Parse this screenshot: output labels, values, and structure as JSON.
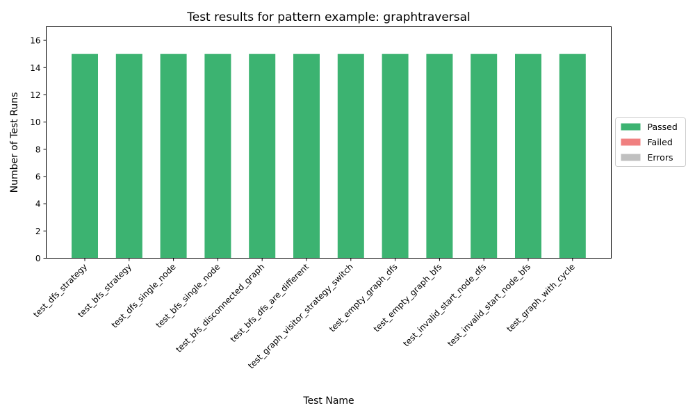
{
  "chart_data": {
    "type": "bar",
    "stacked": true,
    "title": "Test results for pattern example: graphtraversal",
    "xlabel": "Test Name",
    "ylabel": "Number of Test Runs",
    "ylim": [
      0,
      17
    ],
    "yticks": [
      0,
      2,
      4,
      6,
      8,
      10,
      12,
      14,
      16
    ],
    "grid": false,
    "legend_position": "center-right",
    "categories": [
      "test_dfs_strategy",
      "test_bfs_strategy",
      "test_dfs_single_node",
      "test_bfs_single_node",
      "test_bfs_disconnected_graph",
      "test_bfs_dfs_are_different",
      "test_graph_visitor_strategy_switch",
      "test_empty_graph_dfs",
      "test_empty_graph_bfs",
      "test_invalid_start_node_dfs",
      "test_invalid_start_node_bfs",
      "test_graph_with_cycle"
    ],
    "series": [
      {
        "name": "Passed",
        "color": "#3cb371",
        "values": [
          15,
          15,
          15,
          15,
          15,
          15,
          15,
          15,
          15,
          15,
          15,
          15
        ]
      },
      {
        "name": "Failed",
        "color": "#f08080",
        "values": [
          0,
          0,
          0,
          0,
          0,
          0,
          0,
          0,
          0,
          0,
          0,
          0
        ]
      },
      {
        "name": "Errors",
        "color": "#c0c0c0",
        "values": [
          0,
          0,
          0,
          0,
          0,
          0,
          0,
          0,
          0,
          0,
          0,
          0
        ]
      }
    ]
  }
}
